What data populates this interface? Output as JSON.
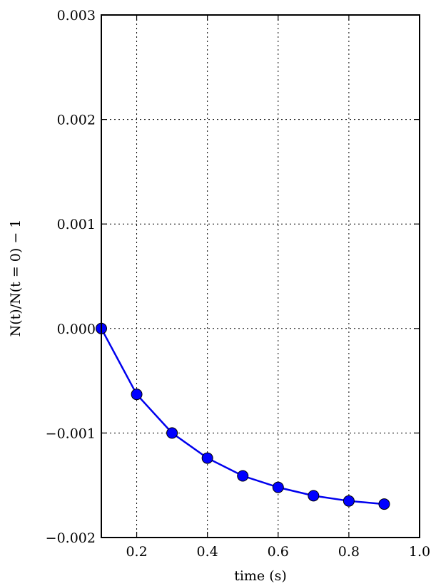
{
  "chart_data": {
    "type": "line",
    "xlabel": "time (s)",
    "ylabel": "N(t)/N(t = 0) − 1",
    "xlim": [
      0.1,
      1.0
    ],
    "ylim": [
      -0.002,
      0.003
    ],
    "x_ticks": [
      0.2,
      0.4,
      0.6,
      0.8,
      1.0
    ],
    "x_tick_labels": [
      "0.2",
      "0.4",
      "0.6",
      "0.8",
      "1.0"
    ],
    "y_ticks": [
      -0.002,
      -0.001,
      0.0,
      0.001,
      0.002,
      0.003
    ],
    "y_tick_labels": [
      "−0.002",
      "−0.001",
      "0.000",
      "0.001",
      "0.002",
      "0.003"
    ],
    "grid": true,
    "series": [
      {
        "color": "#0000ff",
        "marker": "circle",
        "x": [
          0.1,
          0.2,
          0.3,
          0.4,
          0.5,
          0.6,
          0.7,
          0.8,
          0.9
        ],
        "y": [
          0.0,
          -0.00063,
          -0.001,
          -0.00124,
          -0.00141,
          -0.00152,
          -0.0016,
          -0.00165,
          -0.00168
        ]
      }
    ]
  }
}
